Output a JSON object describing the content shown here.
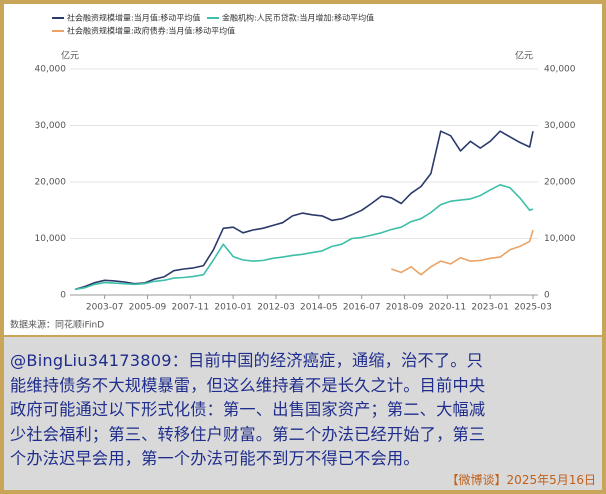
{
  "chart_data": {
    "type": "line",
    "legend": "top-left",
    "y_unit": "亿元",
    "y2_unit": "亿元",
    "source": "数据来源：同花顺iFinD",
    "grid": true,
    "x": [
      "2002-01",
      "2002-07",
      "2003-01",
      "2003-07",
      "2004-01",
      "2004-07",
      "2005-01",
      "2005-07",
      "2006-01",
      "2006-07",
      "2007-01",
      "2007-07",
      "2008-01",
      "2008-07",
      "2009-01",
      "2009-07",
      "2010-01",
      "2010-07",
      "2011-01",
      "2011-07",
      "2012-01",
      "2012-07",
      "2013-01",
      "2013-07",
      "2014-01",
      "2014-07",
      "2015-01",
      "2015-07",
      "2016-01",
      "2016-07",
      "2017-01",
      "2017-07",
      "2018-01",
      "2018-07",
      "2019-01",
      "2019-07",
      "2020-01",
      "2020-07",
      "2021-01",
      "2021-07",
      "2022-01",
      "2022-07",
      "2023-01",
      "2023-07",
      "2024-01",
      "2024-07",
      "2025-01",
      "2025-03"
    ],
    "xticks": [
      "2003-07",
      "2005-09",
      "2007-11",
      "2010-01",
      "2012-03",
      "2014-05",
      "2016-07",
      "2018-09",
      "2020-11",
      "2023-01",
      "2025-03"
    ],
    "ylim": [
      0,
      40000
    ],
    "yticks": [
      0,
      {
        "value": 10000,
        "label": "10,000"
      },
      {
        "value": 20000,
        "label": "20,000"
      },
      {
        "value": 30000,
        "label": "30,000"
      },
      {
        "value": 40000,
        "label": "40,000"
      }
    ],
    "y2lim": [
      0,
      40000
    ],
    "y2ticks": [
      0,
      {
        "value": 10000,
        "label": "10,000"
      },
      {
        "value": 20000,
        "label": "20,000"
      },
      {
        "value": 30000,
        "label": "30,000"
      },
      {
        "value": 40000,
        "label": "40,000"
      }
    ],
    "series": [
      {
        "name": "社会融资规模增量:当月值:移动平均值",
        "color": "#2b3a6b",
        "values": [
          1000,
          1500,
          2200,
          2600,
          2500,
          2300,
          2000,
          2100,
          2800,
          3200,
          4300,
          4600,
          4800,
          5200,
          8000,
          11800,
          12000,
          11000,
          11500,
          11800,
          12300,
          12800,
          14000,
          14500,
          14200,
          14000,
          13200,
          13500,
          14200,
          15000,
          16200,
          17500,
          17200,
          16200,
          18000,
          19200,
          21500,
          29000,
          28200,
          25500,
          27200,
          26000,
          27200,
          29000,
          28000,
          27000,
          26200,
          29000
        ]
      },
      {
        "name": "金融机构:人民币贷款:当月增加:移动平均值",
        "color": "#3dbfa8",
        "values": [
          1000,
          1300,
          1900,
          2200,
          2100,
          2000,
          1900,
          2000,
          2400,
          2600,
          3000,
          3100,
          3300,
          3600,
          6200,
          9000,
          6800,
          6200,
          6000,
          6100,
          6500,
          6700,
          7000,
          7200,
          7500,
          7800,
          8600,
          9000,
          10000,
          10200,
          10600,
          11000,
          11600,
          12000,
          13000,
          13500,
          14600,
          16000,
          16600,
          16800,
          17000,
          17600,
          18600,
          19500,
          19000,
          17200,
          15000,
          15200
        ]
      },
      {
        "name": "社会融资规模增量:政府债券:当月值:移动平均值",
        "color": "#e9a366",
        "values": [
          null,
          null,
          null,
          null,
          null,
          null,
          null,
          null,
          null,
          null,
          null,
          null,
          null,
          null,
          null,
          null,
          null,
          null,
          null,
          null,
          null,
          null,
          null,
          null,
          null,
          null,
          null,
          null,
          null,
          null,
          null,
          null,
          4600,
          4000,
          5000,
          3600,
          5000,
          6000,
          5500,
          6600,
          6000,
          6100,
          6500,
          6700,
          8000,
          8600,
          9500,
          11500
        ]
      }
    ]
  },
  "panel": {
    "lines": [
      "@BingLiu34173809：目前中国的经济癌症，通缩，治不了。只",
      "能维持债务不大规模暴雷，但这么维持着不是长久之计。目前中央",
      "政府可能通过以下形式化债：第一、出售国家资产；第二、大幅减",
      "少社会福利；第三、转移住户财富。第二个办法已经开始了，第三",
      "个办法迟早会用，第一个办法可能不到万不得已不会用。"
    ],
    "footer": "【微博谈】2025年5月16日"
  }
}
